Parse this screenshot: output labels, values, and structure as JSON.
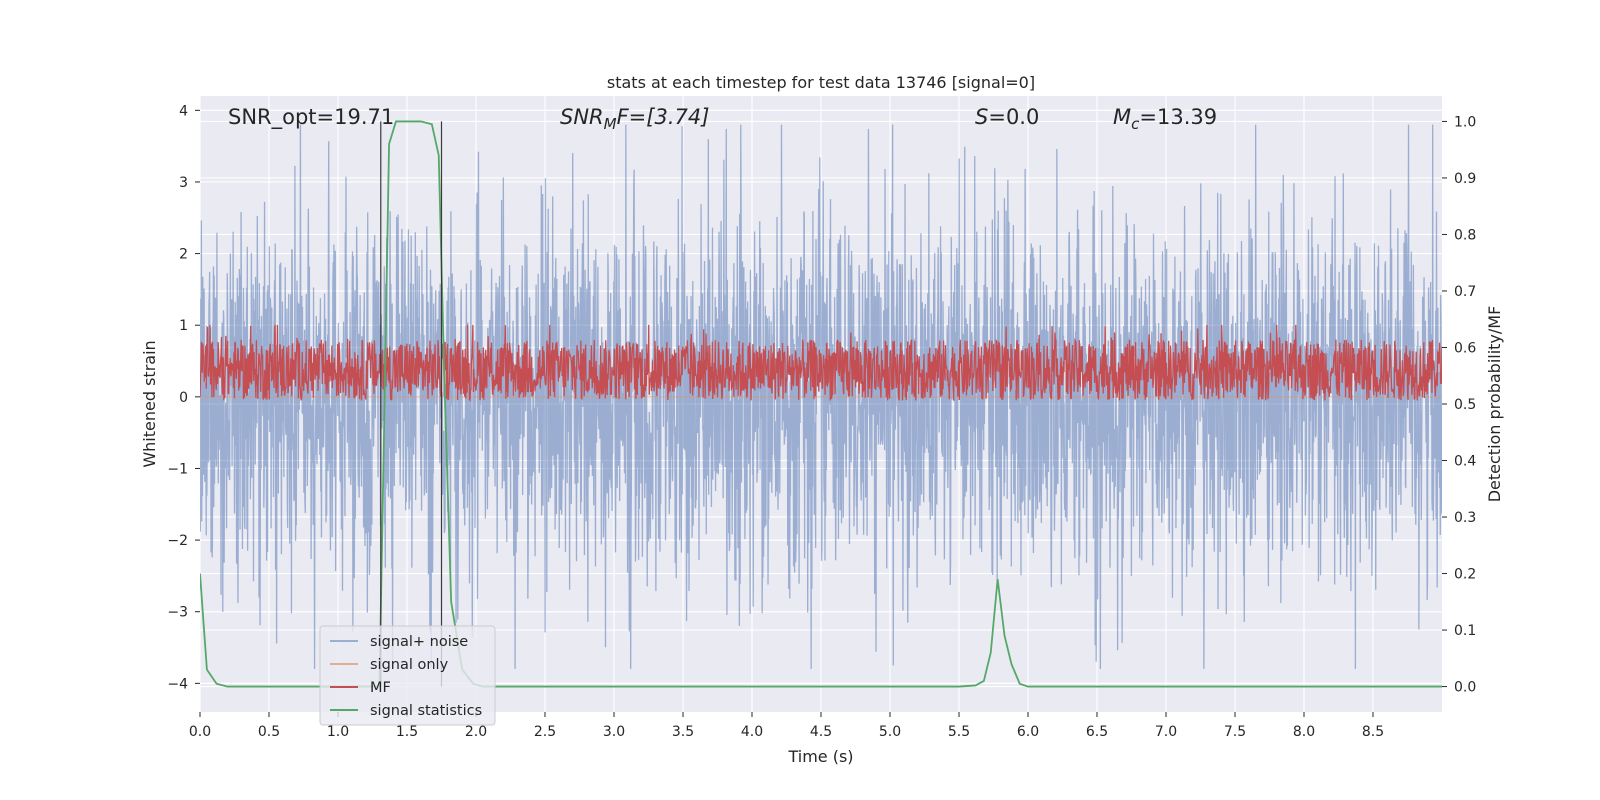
{
  "chart_data": {
    "type": "line",
    "title": "stats at each timestep for test data 13746 [signal=0]",
    "xlabel": "Time (s)",
    "ylabel": "Whitened strain",
    "y2label": "Detection probability/MF",
    "xlim": [
      0.0,
      9.0
    ],
    "ylim": [
      -4.4,
      4.2
    ],
    "y2lim": [
      -0.045,
      1.045
    ],
    "x_ticks": [
      "0.0",
      "0.5",
      "1.0",
      "1.5",
      "2.0",
      "2.5",
      "3.0",
      "3.5",
      "4.0",
      "4.5",
      "5.0",
      "5.5",
      "6.0",
      "6.5",
      "7.0",
      "7.5",
      "8.0",
      "8.5"
    ],
    "y_ticks": [
      "4",
      "3",
      "2",
      "1",
      "0",
      "−1",
      "−2",
      "−3",
      "−4"
    ],
    "y2_ticks": [
      "1.0",
      "0.9",
      "0.8",
      "0.7",
      "0.6",
      "0.5",
      "0.4",
      "0.3",
      "0.2",
      "0.1",
      "0.0"
    ],
    "grid": true,
    "legend_placement": "lower-left",
    "annotations": {
      "snr_opt": "SNR_opt=19.71",
      "snr_mf_base": "SNR",
      "snr_mf_sub": "M",
      "snr_mf_rest": "F=[3.74]",
      "s_italic": "S",
      "s_rest": "=0.0",
      "mc_base": "M",
      "mc_sub": "c",
      "mc_rest": "=13.39"
    },
    "vertical_markers": [
      1.31,
      1.75
    ],
    "series": [
      {
        "name": "signal+ noise",
        "color": "#4c72b0",
        "alpha": 0.5,
        "axis": "left",
        "kind": "noise",
        "amplitude_range": [
          -3.8,
          3.8
        ]
      },
      {
        "name": "signal only",
        "color": "#dd8452",
        "alpha": 0.6,
        "axis": "left",
        "kind": "flat",
        "value": 0.0
      },
      {
        "name": "MF",
        "color": "#c44e52",
        "axis": "right",
        "kind": "noise",
        "range": [
          0.5,
          0.62
        ]
      },
      {
        "name": "signal statistics",
        "color": "#55a868",
        "axis": "right",
        "kind": "line",
        "x": [
          0.0,
          0.05,
          0.12,
          0.2,
          0.3,
          0.5,
          1.0,
          1.2,
          1.3,
          1.33,
          1.37,
          1.42,
          1.5,
          1.6,
          1.68,
          1.73,
          1.77,
          1.82,
          1.9,
          1.98,
          2.05,
          2.15,
          3.0,
          4.0,
          5.0,
          5.5,
          5.62,
          5.68,
          5.73,
          5.78,
          5.83,
          5.88,
          5.94,
          6.0,
          6.2,
          7.0,
          8.0,
          9.0
        ],
        "y": [
          0.2,
          0.03,
          0.005,
          0.0,
          0.0,
          0.0,
          0.0,
          0.0,
          0.0,
          0.4,
          0.96,
          1.0,
          1.0,
          1.0,
          0.995,
          0.94,
          0.55,
          0.15,
          0.03,
          0.005,
          0.0,
          0.0,
          0.0,
          0.0,
          0.0,
          0.0,
          0.002,
          0.01,
          0.06,
          0.19,
          0.09,
          0.04,
          0.005,
          0.0,
          0.0,
          0.0,
          0.0,
          0.0
        ]
      }
    ]
  }
}
